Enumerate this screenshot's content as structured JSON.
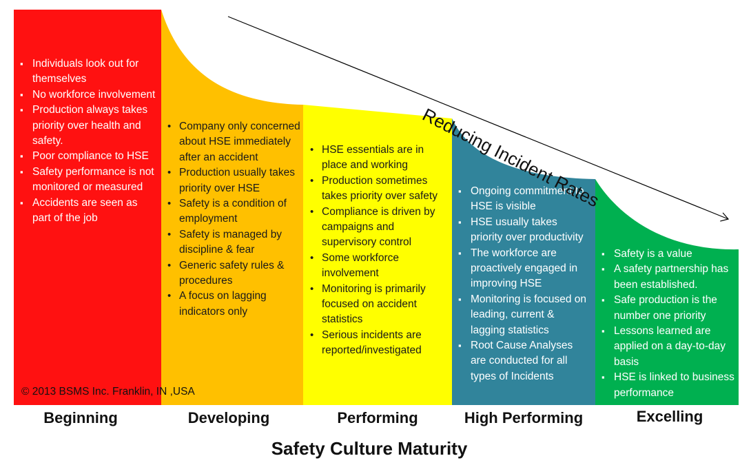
{
  "stages": [
    {
      "label": "Beginning",
      "color": "#ff1111",
      "text_color": "#ffffff",
      "bullets": [
        "Individuals look out for themselves",
        "No workforce involvement",
        "Production always takes priority over health and safety.",
        "Poor compliance to HSE",
        "Safety performance is not monitored or measured",
        "Accidents are seen as part of the job"
      ]
    },
    {
      "label": "Developing",
      "color": "#ffc000",
      "text_color": "#1a1a1a",
      "bullets": [
        "Company only concerned about HSE immediately after an accident",
        "Production usually takes priority over HSE",
        "Safety is a condition of employment",
        "Safety is managed by discipline & fear",
        "Generic safety rules & procedures",
        "A focus on lagging indicators only"
      ]
    },
    {
      "label": "Performing",
      "color": "#ffff00",
      "text_color": "#1a1a1a",
      "bullets": [
        "HSE essentials  are in place and working",
        "Production sometimes takes priority over safety",
        "Compliance is driven by campaigns and supervisory control",
        "Some workforce involvement",
        "Monitoring is primarily focused on accident statistics",
        "Serious incidents are reported/investigated"
      ]
    },
    {
      "label": "High Performing",
      "color": "#31849b",
      "text_color": "#ffffff",
      "bullets": [
        "Ongoing commitment to HSE is visible",
        "HSE usually takes priority over productivity",
        "The workforce are proactively engaged in improving HSE",
        "Monitoring is focused on leading, current & lagging statistics",
        "Root Cause Analyses are conducted for all types of Incidents"
      ]
    },
    {
      "label": "Excelling",
      "color": "#00b050",
      "text_color": "#ffffff",
      "bullets": [
        "Safety is a value",
        "A safety partnership has been established.",
        "Safe production is the number one priority",
        "Lessons learned are applied on a day-to-day basis",
        "HSE is linked to business performance"
      ]
    }
  ],
  "trend_label": "Reducing Incident Rates",
  "axis_title": "Safety Culture Maturity",
  "copyright": "© 2013 BSMS Inc. Franklin, IN ,USA"
}
